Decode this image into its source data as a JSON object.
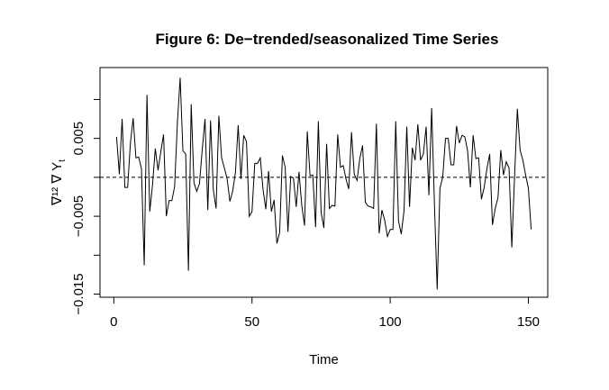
{
  "chart_data": {
    "type": "line",
    "title": "Figure 6: De−trended/seasonalized Time Series",
    "xlabel": "Time",
    "ylabel": "∇¹² ∇ Y",
    "ylabel_subscript": "t",
    "xlim": [
      -5,
      157
    ],
    "ylim": [
      -0.0154,
      0.0141
    ],
    "x_ticks": [
      0,
      50,
      100,
      150
    ],
    "x_tick_labels": [
      "0",
      "50",
      "100",
      "150"
    ],
    "y_ticks": [
      -0.015,
      -0.005,
      0.005
    ],
    "y_tick_labels": [
      "−0.015",
      "−0.005",
      "0.005"
    ],
    "y_minor_ticks": [
      -0.01,
      0.0,
      0.01
    ],
    "reference_line": {
      "y": 0,
      "style": "dashed"
    },
    "grid": false,
    "series": [
      {
        "x": [
          1,
          2,
          3,
          4,
          5,
          6,
          7,
          8,
          9,
          10,
          11,
          12,
          13,
          14,
          15,
          16,
          17,
          18,
          19,
          20,
          21,
          22,
          23,
          24,
          25,
          26,
          27,
          28,
          29,
          30,
          31,
          32,
          33,
          34,
          35,
          36,
          37,
          38,
          39,
          40,
          41,
          42,
          43,
          44,
          45,
          46,
          47,
          48,
          49,
          50,
          51,
          52,
          53,
          54,
          55,
          56,
          57,
          58,
          59,
          60,
          61,
          62,
          63,
          64,
          65,
          66,
          67,
          68,
          69,
          70,
          71,
          72,
          73,
          74,
          75,
          76,
          77,
          78,
          79,
          80,
          81,
          82,
          83,
          84,
          85,
          86,
          87,
          88,
          89,
          90,
          91,
          92,
          93,
          94,
          95,
          96,
          97,
          98,
          99,
          100,
          101,
          102,
          103,
          104,
          105,
          106,
          107,
          108,
          109,
          110,
          111,
          112,
          113,
          114,
          115,
          116,
          117,
          118,
          119,
          120,
          121,
          122,
          123,
          124,
          125,
          126,
          127,
          128,
          129,
          130,
          131,
          132,
          133,
          134,
          135,
          136,
          137,
          138,
          139,
          140,
          141,
          142,
          143,
          144,
          145,
          146,
          147,
          148,
          149,
          150,
          151
        ],
        "y": [
          0.0052,
          0.0004,
          0.0075,
          -0.0013,
          -0.0013,
          0.0044,
          0.0076,
          0.0025,
          0.0026,
          0.0011,
          -0.0113,
          0.0106,
          -0.0044,
          -0.001,
          0.0037,
          0.0009,
          0.0033,
          0.0055,
          -0.005,
          -0.003,
          -0.003,
          -0.0012,
          0.007,
          0.0128,
          0.0034,
          0.003,
          -0.012,
          0.0094,
          -0.0007,
          -0.0018,
          -0.0008,
          0.0036,
          0.0075,
          -0.0042,
          0.0073,
          -0.0016,
          -0.004,
          0.0079,
          0.0025,
          0.0012,
          -0.0002,
          -0.0031,
          -0.0018,
          0.0006,
          0.0067,
          -0.0002,
          0.0054,
          0.0046,
          -0.005,
          -0.0044,
          0.0018,
          0.0018,
          0.0025,
          -0.0016,
          -0.0041,
          0.0008,
          -0.0044,
          -0.0029,
          -0.0085,
          -0.0071,
          0.0028,
          0.0013,
          -0.007,
          0.0001,
          -0.0001,
          -0.0038,
          0.0007,
          -0.0036,
          -0.0062,
          0.0059,
          0.0002,
          0.0003,
          -0.0064,
          0.0072,
          -0.0045,
          -0.0065,
          0.0043,
          -0.004,
          -0.0036,
          -0.0037,
          0.0055,
          0.0013,
          0.0015,
          -0.0002,
          -0.0015,
          0.0058,
          0.0004,
          -0.0004,
          0.0024,
          0.0041,
          -0.0032,
          -0.0037,
          -0.0038,
          -0.004,
          0.0069,
          -0.0072,
          -0.0042,
          -0.0055,
          -0.0076,
          -0.0067,
          -0.0067,
          0.0072,
          -0.0056,
          -0.0073,
          -0.0043,
          0.0065,
          -0.0038,
          0.0038,
          0.0022,
          0.0068,
          0.0022,
          0.003,
          0.0065,
          -0.0023,
          0.0089,
          -0.0034,
          -0.0144,
          -0.0014,
          0.0,
          0.005,
          0.005,
          0.0016,
          0.0016,
          0.0066,
          0.0044,
          0.0054,
          0.0052,
          0.0034,
          -0.0013,
          0.0054,
          0.0024,
          0.0025,
          -0.0028,
          -0.0013,
          0.0011,
          0.003,
          -0.0061,
          -0.004,
          -0.0026,
          0.0035,
          0.0003,
          0.002,
          0.0012,
          -0.009,
          0.0001,
          0.0088,
          0.0035,
          0.0022,
          0.0003,
          -0.0014,
          -0.0067
        ]
      }
    ]
  }
}
